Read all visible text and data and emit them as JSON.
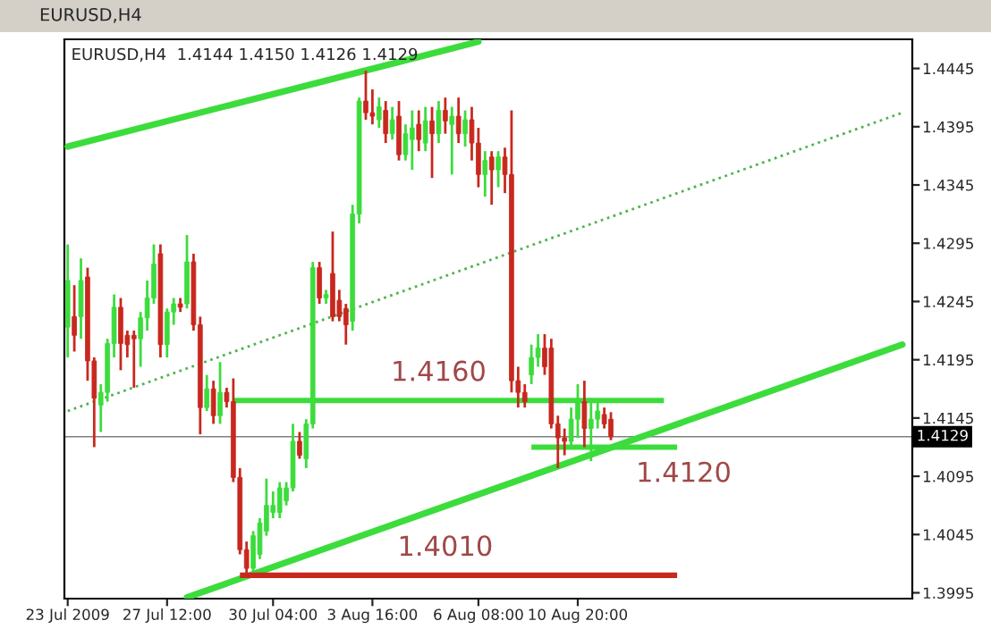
{
  "chart_data": {
    "type": "candlestick",
    "title": "EURUSD,H4",
    "subtitle": "EURUSD,H4  1.4144 1.4150 1.4126 1.4129",
    "categories": [
      "23 Jul 2009",
      null,
      null,
      null,
      null,
      null,
      null,
      null,
      null,
      null,
      null,
      null,
      null,
      null,
      null,
      "27 Jul 12:00",
      null,
      null,
      null,
      null,
      null,
      null,
      null,
      null,
      null,
      null,
      null,
      null,
      null,
      null,
      null,
      "30 Jul 04:00",
      null,
      null,
      null,
      null,
      null,
      null,
      null,
      null,
      null,
      null,
      null,
      null,
      null,
      null,
      "3 Aug 16:00",
      null,
      null,
      null,
      null,
      null,
      null,
      null,
      null,
      null,
      null,
      null,
      null,
      null,
      null,
      null,
      "6 Aug 08:00",
      null,
      null,
      null,
      null,
      null,
      null,
      null,
      null,
      null,
      null,
      null,
      null,
      null,
      null,
      "10 Aug 20:00",
      null,
      null,
      null,
      null,
      null,
      null,
      null,
      null,
      null,
      null,
      null,
      null,
      null,
      null,
      null,
      null,
      null,
      null,
      null,
      null,
      null,
      null,
      null,
      null,
      null,
      null,
      null,
      null,
      null,
      null,
      null,
      null,
      null,
      null,
      null,
      null,
      null,
      null,
      null,
      null,
      null,
      null,
      null,
      null,
      null,
      null,
      null,
      null,
      null,
      null
    ],
    "ohlc": [
      [
        1.4223,
        1.4294,
        1.4197,
        1.4263
      ],
      [
        1.4232,
        1.4259,
        1.4202,
        1.4216
      ],
      [
        1.4232,
        1.4282,
        1.4213,
        1.4263
      ],
      [
        1.4266,
        1.4274,
        1.4177,
        1.4194
      ],
      [
        1.4194,
        1.4197,
        1.412,
        1.4162
      ],
      [
        1.4156,
        1.4174,
        1.4133,
        1.4167
      ],
      [
        1.4167,
        1.4213,
        1.4159,
        1.4209
      ],
      [
        1.4209,
        1.4251,
        1.4197,
        1.424
      ],
      [
        1.424,
        1.4248,
        1.4186,
        1.4209
      ],
      [
        1.4216,
        1.422,
        1.4197,
        1.4208
      ],
      [
        1.4216,
        1.422,
        1.4171,
        1.4213
      ],
      [
        1.4213,
        1.4236,
        1.4189,
        1.4231
      ],
      [
        1.4231,
        1.4263,
        1.422,
        1.4248
      ],
      [
        1.4248,
        1.4294,
        1.4243,
        1.4277
      ],
      [
        1.4286,
        1.4294,
        1.4197,
        1.4208
      ],
      [
        1.4208,
        1.4239,
        1.4197,
        1.4236
      ],
      [
        1.4236,
        1.4248,
        1.4225,
        1.4243
      ],
      [
        1.4243,
        1.4248,
        1.4236,
        1.424
      ],
      [
        1.4243,
        1.4302,
        1.4239,
        1.4279
      ],
      [
        1.4279,
        1.4286,
        1.422,
        1.4225
      ],
      [
        1.4225,
        1.4232,
        1.4131,
        1.4154
      ],
      [
        1.4154,
        1.4182,
        1.4151,
        1.417
      ],
      [
        1.417,
        1.4177,
        1.414,
        1.4147
      ],
      [
        1.4147,
        1.4193,
        1.414,
        1.4167
      ],
      [
        1.4167,
        1.4171,
        1.4154,
        1.4159
      ],
      [
        1.4159,
        1.4179,
        1.409,
        1.4094
      ],
      [
        1.4094,
        1.4102,
        1.4028,
        1.4032
      ],
      [
        1.4032,
        1.4039,
        1.4009,
        1.4016
      ],
      [
        1.4016,
        1.4048,
        1.4013,
        1.4044
      ],
      [
        1.4028,
        1.4059,
        1.4024,
        1.4055
      ],
      [
        1.4048,
        1.4093,
        1.4044,
        1.407
      ],
      [
        1.4064,
        1.4082,
        1.4059,
        1.407
      ],
      [
        1.4064,
        1.409,
        1.4059,
        1.4085
      ],
      [
        1.4074,
        1.409,
        1.407,
        1.4085
      ],
      [
        1.4085,
        1.414,
        1.4082,
        1.4125
      ],
      [
        1.4125,
        1.4133,
        1.411,
        1.4113
      ],
      [
        1.411,
        1.4144,
        1.4102,
        1.414
      ],
      [
        1.414,
        1.4279,
        1.4136,
        1.4274
      ],
      [
        1.4274,
        1.4279,
        1.4243,
        1.4248
      ],
      [
        1.4248,
        1.4255,
        1.4243,
        1.4251
      ],
      [
        1.4269,
        1.4305,
        1.4228,
        1.4232
      ],
      [
        1.4246,
        1.4255,
        1.4228,
        1.4232
      ],
      [
        1.4239,
        1.4243,
        1.4208,
        1.4225
      ],
      [
        1.4228,
        1.4328,
        1.422,
        1.432
      ],
      [
        1.432,
        1.442,
        1.4312,
        1.4417
      ],
      [
        1.4417,
        1.4443,
        1.4401,
        1.4407
      ],
      [
        1.4407,
        1.4427,
        1.4397,
        1.4404
      ],
      [
        1.4401,
        1.442,
        1.4394,
        1.4412
      ],
      [
        1.4409,
        1.4417,
        1.4381,
        1.4389
      ],
      [
        1.4389,
        1.4412,
        1.4384,
        1.4401
      ],
      [
        1.4404,
        1.4417,
        1.4366,
        1.4371
      ],
      [
        1.4371,
        1.4397,
        1.4366,
        1.4389
      ],
      [
        1.4384,
        1.4409,
        1.4358,
        1.4394
      ],
      [
        1.4397,
        1.4409,
        1.4374,
        1.4384
      ],
      [
        1.4381,
        1.4412,
        1.4374,
        1.44
      ],
      [
        1.44,
        1.4412,
        1.4351,
        1.4389
      ],
      [
        1.4389,
        1.4417,
        1.4381,
        1.4409
      ],
      [
        1.4409,
        1.442,
        1.4389,
        1.44
      ],
      [
        1.4397,
        1.4412,
        1.4354,
        1.4404
      ],
      [
        1.4404,
        1.442,
        1.4381,
        1.4389
      ],
      [
        1.4389,
        1.4409,
        1.4378,
        1.4401
      ],
      [
        1.4401,
        1.4412,
        1.4366,
        1.4381
      ],
      [
        1.4381,
        1.4394,
        1.4343,
        1.4354
      ],
      [
        1.4354,
        1.4374,
        1.4335,
        1.4366
      ],
      [
        1.4369,
        1.4374,
        1.4328,
        1.4358
      ],
      [
        1.4358,
        1.4374,
        1.4343,
        1.4369
      ],
      [
        1.4369,
        1.4377,
        1.4338,
        1.4354
      ],
      [
        1.4354,
        1.4409,
        1.4167,
        1.4177
      ],
      [
        1.4177,
        1.4189,
        1.4154,
        1.4167
      ],
      [
        1.4167,
        1.4174,
        1.4154,
        1.4159
      ],
      [
        1.4182,
        1.4208,
        1.4174,
        1.4197
      ],
      [
        1.4197,
        1.4217,
        1.4189,
        1.4205
      ],
      [
        1.4205,
        1.4217,
        1.4182,
        1.4189
      ],
      [
        1.4205,
        1.4213,
        1.4136,
        1.414
      ],
      [
        1.414,
        1.4147,
        1.4102,
        1.4128
      ],
      [
        1.4128,
        1.4136,
        1.4113,
        1.4125
      ],
      [
        1.4125,
        1.4154,
        1.412,
        1.4144
      ],
      [
        1.4144,
        1.4174,
        1.4128,
        1.4159
      ],
      [
        1.4159,
        1.4177,
        1.412,
        1.4136
      ],
      [
        1.4136,
        1.4159,
        1.4108,
        1.4144
      ],
      [
        1.4144,
        1.4159,
        1.4136,
        1.4151
      ],
      [
        1.4148,
        1.4154,
        1.4136,
        1.414
      ],
      [
        1.4144,
        1.415,
        1.4126,
        1.4129
      ],
      null,
      null,
      null,
      null,
      null,
      null,
      null,
      null,
      null,
      null,
      null,
      null,
      null,
      null,
      null,
      null,
      null,
      null,
      null,
      null,
      null,
      null,
      null,
      null,
      null,
      null,
      null,
      null,
      null,
      null,
      null,
      null,
      null,
      null,
      null,
      null,
      null,
      null,
      null,
      null,
      null,
      null,
      null,
      null,
      null
    ],
    "colors": [
      "#3cdc3c",
      "#c8281e",
      "#3cdc3c",
      "#c8281e",
      "#c8281e",
      "#3cdc3c",
      "#3cdc3c",
      "#3cdc3c",
      "#c8281e",
      "#c8281e",
      "#c8281e",
      "#3cdc3c",
      "#3cdc3c",
      "#3cdc3c",
      "#c8281e",
      "#3cdc3c",
      "#3cdc3c",
      "#c8281e",
      "#3cdc3c",
      "#c8281e",
      "#c8281e",
      "#3cdc3c",
      "#c8281e",
      "#3cdc3c",
      "#c8281e",
      "#c8281e",
      "#c8281e",
      "#c8281e",
      "#3cdc3c",
      "#3cdc3c",
      "#3cdc3c",
      "#3cdc3c",
      "#3cdc3c",
      "#3cdc3c",
      "#3cdc3c",
      "#c8281e",
      "#3cdc3c",
      "#3cdc3c",
      "#c8281e",
      "#3cdc3c",
      "#c8281e",
      "#c8281e",
      "#c8281e",
      "#3cdc3c",
      "#3cdc3c",
      "#c8281e",
      "#c8281e",
      "#3cdc3c",
      "#c8281e",
      "#3cdc3c",
      "#c8281e",
      "#3cdc3c",
      "#3cdc3c",
      "#c8281e",
      "#3cdc3c",
      "#c8281e",
      "#3cdc3c",
      "#c8281e",
      "#3cdc3c",
      "#c8281e",
      "#3cdc3c",
      "#c8281e",
      "#c8281e",
      "#3cdc3c",
      "#c8281e",
      "#3cdc3c",
      "#c8281e",
      "#c8281e",
      "#c8281e",
      "#c8281e",
      "#3cdc3c",
      "#3cdc3c",
      "#c8281e",
      "#c8281e",
      "#c8281e",
      "#c8281e",
      "#3cdc3c",
      "#3cdc3c",
      "#c8281e",
      "#3cdc3c",
      "#3cdc3c",
      "#c8281e",
      "#c8281e",
      null,
      null,
      null,
      null,
      null,
      null,
      null,
      null,
      null,
      null,
      null,
      null,
      null,
      null,
      null,
      null,
      null,
      null,
      null,
      null,
      null,
      null,
      null,
      null,
      null,
      null,
      null,
      null,
      null,
      null,
      null,
      null,
      null,
      null,
      null,
      null,
      null,
      null,
      null,
      null,
      null,
      null,
      null,
      null,
      null
    ],
    "series": [
      {
        "type": "line",
        "color": "#3cdc3c",
        "line_style": "solid",
        "values": [
          1.4378,
          null,
          null,
          null,
          null,
          null,
          null,
          null,
          null,
          null,
          null,
          null,
          null,
          null,
          null,
          null,
          null,
          null,
          null,
          null,
          null,
          null,
          null,
          null,
          null,
          null,
          null,
          null,
          null,
          null,
          null,
          null,
          null,
          null,
          null,
          null,
          null,
          null,
          null,
          null,
          null,
          null,
          null,
          null,
          null,
          null,
          null,
          null,
          null,
          null,
          null,
          null,
          null,
          null,
          null,
          null,
          null,
          null,
          null,
          null,
          null,
          null,
          1.4468,
          null,
          null,
          null,
          null,
          null,
          null,
          null,
          null,
          null,
          null,
          null,
          null,
          null,
          null,
          null,
          null,
          null,
          null,
          null,
          null,
          null,
          null,
          null,
          null,
          null,
          null,
          null,
          null,
          null,
          null,
          null,
          null,
          null,
          null,
          null,
          null,
          null,
          null,
          null,
          null,
          null,
          null,
          null,
          null,
          null,
          null,
          null,
          null,
          null,
          null,
          null,
          null,
          null,
          null,
          null,
          null,
          null,
          null,
          null,
          null,
          null,
          null,
          null,
          null,
          null
        ]
      },
      {
        "type": "line",
        "color": "#3cdc3c",
        "line_style": "solid",
        "values": [
          null,
          null,
          null,
          null,
          null,
          null,
          null,
          null,
          null,
          null,
          null,
          null,
          null,
          null,
          null,
          null,
          null,
          null,
          1.3991,
          null,
          null,
          null,
          null,
          null,
          null,
          null,
          null,
          null,
          null,
          null,
          null,
          null,
          null,
          null,
          null,
          null,
          null,
          null,
          null,
          null,
          null,
          null,
          null,
          null,
          null,
          null,
          null,
          null,
          null,
          null,
          null,
          null,
          null,
          null,
          null,
          null,
          null,
          null,
          null,
          null,
          null,
          null,
          null,
          null,
          null,
          null,
          null,
          null,
          null,
          null,
          null,
          null,
          null,
          null,
          null,
          null,
          null,
          null,
          null,
          null,
          null,
          null,
          null,
          null,
          null,
          null,
          null,
          null,
          null,
          null,
          null,
          null,
          null,
          null,
          null,
          null,
          null,
          null,
          null,
          null,
          null,
          null,
          null,
          null,
          null,
          null,
          null,
          null,
          null,
          null,
          null,
          null,
          null,
          null,
          null,
          null,
          null,
          null,
          null,
          null,
          null,
          null,
          null,
          null,
          null,
          null,
          1.4208,
          null
        ]
      },
      {
        "type": "line",
        "color": "#50b450",
        "line_style": "dotted",
        "values": [
          1.4151,
          null,
          null,
          null,
          null,
          null,
          null,
          null,
          null,
          null,
          null,
          null,
          null,
          null,
          null,
          null,
          null,
          null,
          null,
          null,
          null,
          null,
          null,
          null,
          null,
          null,
          null,
          null,
          null,
          null,
          null,
          null,
          null,
          null,
          null,
          null,
          null,
          null,
          null,
          null,
          null,
          null,
          null,
          null,
          null,
          null,
          null,
          null,
          null,
          null,
          null,
          null,
          null,
          null,
          null,
          null,
          null,
          null,
          null,
          null,
          null,
          null,
          null,
          null,
          null,
          null,
          null,
          null,
          null,
          null,
          null,
          null,
          null,
          null,
          null,
          null,
          null,
          null,
          null,
          null,
          null,
          null,
          null,
          null,
          null,
          null,
          null,
          null,
          null,
          null,
          null,
          null,
          null,
          null,
          null,
          null,
          null,
          null,
          null,
          null,
          null,
          null,
          null,
          null,
          null,
          null,
          null,
          null,
          null,
          null,
          null,
          null,
          null,
          null,
          null,
          null,
          null,
          null,
          null,
          null,
          null,
          null,
          null,
          null,
          null,
          null,
          1.4407,
          null
        ]
      }
    ],
    "ref_lines": [
      {
        "axis": "y",
        "value": 1.416,
        "label": "1.4160",
        "color": "#3cdc3c"
      },
      {
        "axis": "y",
        "value": 1.412,
        "label": "1.4120",
        "color": "#3cdc3c"
      },
      {
        "axis": "y",
        "value": 1.401,
        "label": "1.4010",
        "color": "#c8281e"
      },
      {
        "axis": "y",
        "value": 1.4129,
        "label": "1.4129",
        "color": "#808080"
      }
    ],
    "ylim": [
      1.399,
      1.447
    ],
    "yticks": [
      1.3995,
      1.4045,
      1.4095,
      1.4145,
      1.4195,
      1.4245,
      1.4295,
      1.4345,
      1.4395,
      1.4445
    ],
    "grid": false,
    "legend": false
  }
}
